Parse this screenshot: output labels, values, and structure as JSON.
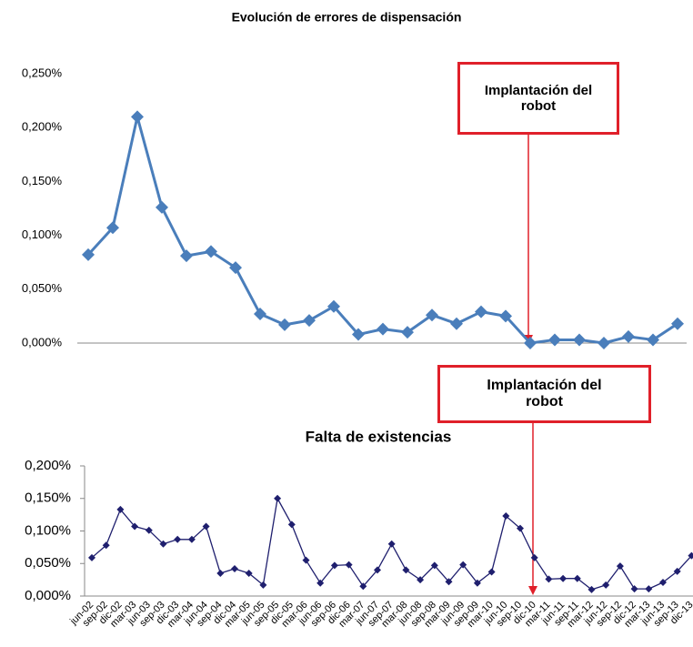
{
  "chart_data": [
    {
      "type": "line",
      "title": "Evolución de errores de dispensación",
      "color": "#4a7ebb",
      "values": [
        0.082,
        0.107,
        0.21,
        0.126,
        0.081,
        0.085,
        0.07,
        0.027,
        0.017,
        0.021,
        0.034,
        0.008,
        0.013,
        0.01,
        0.026,
        0.018,
        0.029,
        0.025,
        0.0,
        0.003,
        0.003,
        0.0,
        0.006,
        0.003,
        0.018
      ],
      "ylim": [
        0,
        0.25
      ],
      "yticks": [
        {
          "value": 0,
          "label": "0,000%"
        },
        {
          "value": 0.05,
          "label": "0,050%"
        },
        {
          "value": 0.1,
          "label": "0,100%"
        },
        {
          "value": 0.15,
          "label": "0,150%"
        },
        {
          "value": 0.2,
          "label": "0,200%"
        },
        {
          "value": 0.25,
          "label": "0,250%"
        }
      ],
      "annotation": "Implantación del robot"
    },
    {
      "type": "line",
      "title": "Falta de existencias",
      "color": "#1f1f6e",
      "categories": [
        "jun-02",
        "sep-02",
        "dic-02",
        "mar-03",
        "jun-03",
        "sep-03",
        "dic-03",
        "mar-04",
        "jun-04",
        "sep-04",
        "dic-04",
        "mar-05",
        "jun-05",
        "sep-05",
        "dic-05",
        "mar-06",
        "jun-06",
        "sep-06",
        "dic-06",
        "mar-07",
        "jun-07",
        "sep-07",
        "mar-08",
        "jun-08",
        "sep-08",
        "mar-09",
        "jun-09",
        "sep-09",
        "mar-10",
        "jun-10",
        "sep-10",
        "dic-10",
        "mar-11",
        "jun-11",
        "sep-11",
        "mar-12",
        "jun-12",
        "sep-12",
        "dic-12",
        "mar-13",
        "jun-13",
        "sep-13",
        "dic-13"
      ],
      "values": [
        0.059,
        0.078,
        0.133,
        0.107,
        0.101,
        0.08,
        0.087,
        0.087,
        0.107,
        0.035,
        0.042,
        0.035,
        0.017,
        0.15,
        0.11,
        0.055,
        0.02,
        0.047,
        0.048,
        0.015,
        0.04,
        0.08,
        0.04,
        0.025,
        0.047,
        0.022,
        0.048,
        0.02,
        0.037,
        0.123,
        0.104,
        0.059,
        0.026,
        0.027,
        0.027,
        0.01,
        0.017,
        0.046,
        0.011,
        0.011,
        0.021,
        0.038,
        0.062
      ],
      "ylim": [
        0,
        0.2
      ],
      "yticks": [
        {
          "value": 0,
          "label": "0,000%"
        },
        {
          "value": 0.05,
          "label": "0,050%"
        },
        {
          "value": 0.1,
          "label": "0,100%"
        },
        {
          "value": 0.15,
          "label": "0,150%"
        },
        {
          "value": 0.2,
          "label": "0,200%"
        }
      ],
      "annotation": "Implantación del robot"
    }
  ]
}
